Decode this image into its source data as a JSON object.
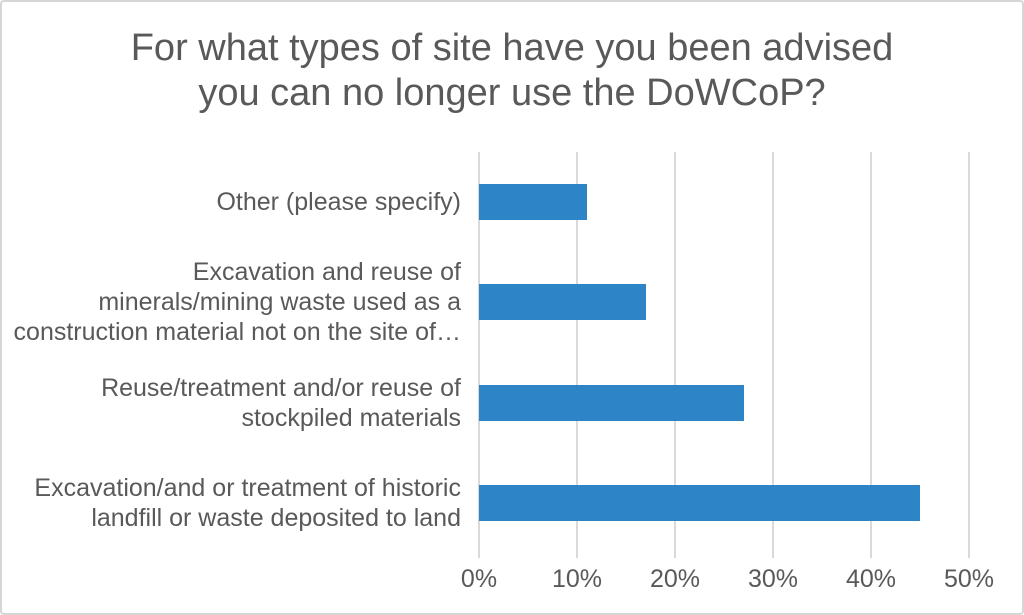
{
  "chart_data": {
    "type": "bar",
    "orientation": "horizontal",
    "title": "For what types of site have you been advised you can no longer use the DoWCoP?",
    "title_lines": [
      "For what types of site have you been advised",
      "you can no longer use the DoWCoP?"
    ],
    "categories": [
      "Other (please specify)",
      "Excavation and reuse of minerals/mining waste used as a construction material not on the site of…",
      "Reuse/treatment and/or reuse of stockpiled materials",
      "Excavation/and or treatment of historic landfill or waste deposited to land"
    ],
    "category_lines": [
      [
        "Other (please specify)"
      ],
      [
        "Excavation and reuse of",
        "minerals/mining waste used as a",
        "construction material not on the site of…"
      ],
      [
        "Reuse/treatment and/or reuse of",
        "stockpiled materials"
      ],
      [
        "Excavation/and or treatment of historic",
        "landfill or waste deposited to land"
      ]
    ],
    "values": [
      11,
      17,
      27,
      45
    ],
    "unit": "%",
    "xlabel": "",
    "ylabel": "",
    "x_ticks": [
      "0%",
      "10%",
      "20%",
      "30%",
      "40%",
      "50%"
    ],
    "x_tick_values": [
      0,
      10,
      20,
      30,
      40,
      50
    ],
    "xlim": [
      0,
      50
    ],
    "grid": "vertical-gridlines-on",
    "legend_position": "none",
    "colors": {
      "bar": "#2D85C7",
      "gridline": "#D9D9D9",
      "text": "#595959",
      "background": "#FFFFFF",
      "border": "#D6D6D6"
    }
  }
}
